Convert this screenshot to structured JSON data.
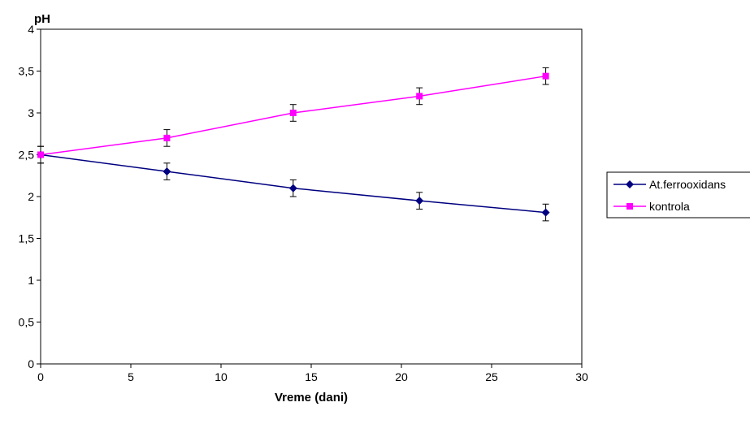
{
  "chart_data": {
    "type": "line",
    "title": "",
    "xlabel": "Vreme (dani)",
    "ylabel": "pH",
    "xlim": [
      0,
      30
    ],
    "ylim": [
      0,
      4
    ],
    "x_ticks": [
      "0",
      "5",
      "10",
      "15",
      "20",
      "25",
      "30"
    ],
    "y_ticks": [
      "0",
      "0,5",
      "1",
      "1,5",
      "2",
      "2,5",
      "3",
      "3,5",
      "4"
    ],
    "grid": false,
    "legend_position": "right",
    "x": [
      0,
      7,
      14,
      21,
      28
    ],
    "series": [
      {
        "name": "At.ferrooxidans",
        "values": [
          2.5,
          2.3,
          2.1,
          1.95,
          1.81
        ],
        "errors": [
          0.1,
          0.1,
          0.1,
          0.1,
          0.1
        ],
        "color": "#000080",
        "marker": "diamond"
      },
      {
        "name": "kontrola",
        "values": [
          2.5,
          2.7,
          3.0,
          3.2,
          3.44
        ],
        "errors": [
          0.1,
          0.1,
          0.1,
          0.1,
          0.1
        ],
        "color": "#ff00ff",
        "marker": "square"
      }
    ]
  }
}
